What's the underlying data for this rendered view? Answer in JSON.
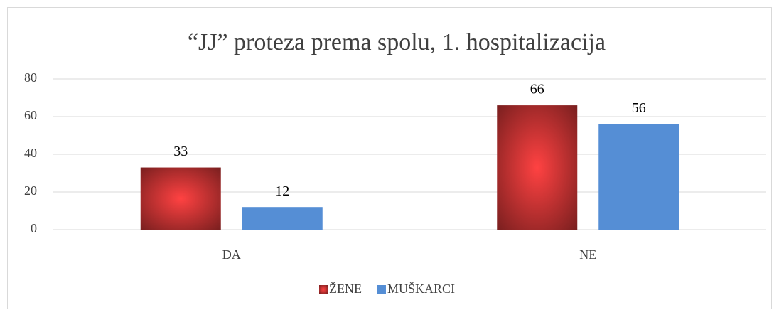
{
  "chart_data": {
    "type": "bar",
    "title": "“JJ” proteza prema spolu, 1. hospitalizacija",
    "categories": [
      "DA",
      "NE"
    ],
    "series": [
      {
        "name": "ŽENE",
        "color": "#ff4242",
        "values": [
          33,
          66
        ]
      },
      {
        "name": "MUŠKARCI",
        "color": "#558ed5",
        "values": [
          12,
          56
        ]
      }
    ],
    "ylim": [
      0,
      80
    ],
    "yticks": [
      0,
      20,
      40,
      60,
      80
    ],
    "grid": true,
    "legend": "bottom"
  }
}
